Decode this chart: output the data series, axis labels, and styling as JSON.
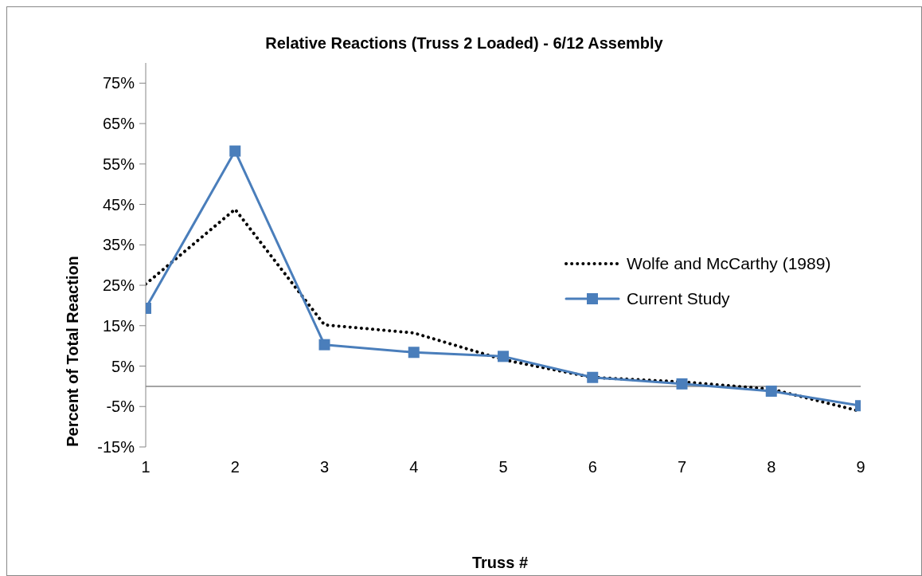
{
  "chart_data": {
    "type": "line",
    "title": "Relative Reactions (Truss 2 Loaded) - 6/12 Assembly",
    "xlabel": "Truss #",
    "ylabel": "Percent of Total Reaction",
    "x": [
      1,
      2,
      3,
      4,
      5,
      6,
      7,
      8,
      9
    ],
    "series": [
      {
        "name": "Wolfe and McCarthy (1989)",
        "color": "#000000",
        "line_style": "dotted",
        "marker": "none",
        "values": [
          25.3,
          43.8,
          15.2,
          13.2,
          6.6,
          2.2,
          1.1,
          -0.7,
          -6.2
        ]
      },
      {
        "name": "Current Study",
        "color": "#4a7ebb",
        "line_style": "solid",
        "marker": "square",
        "values": [
          19.3,
          58.2,
          10.3,
          8.4,
          7.4,
          2.2,
          0.6,
          -1.2,
          -4.8
        ]
      }
    ],
    "xlim": [
      1,
      9
    ],
    "xticks": [
      1,
      2,
      3,
      4,
      5,
      6,
      7,
      8,
      9
    ],
    "ylim": [
      -15,
      80
    ],
    "yticks": [
      {
        "value": -15,
        "label": "-15%"
      },
      {
        "value": -5,
        "label": "-5%"
      },
      {
        "value": 5,
        "label": "5%"
      },
      {
        "value": 15,
        "label": "15%"
      },
      {
        "value": 25,
        "label": "25%"
      },
      {
        "value": 35,
        "label": "35%"
      },
      {
        "value": 45,
        "label": "45%"
      },
      {
        "value": 55,
        "label": "55%"
      },
      {
        "value": 65,
        "label": "65%"
      },
      {
        "value": 75,
        "label": "75%"
      }
    ],
    "legend": "right",
    "grid": false
  }
}
